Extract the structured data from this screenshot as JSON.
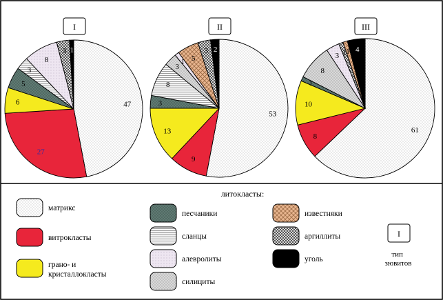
{
  "figure": {
    "legend_title": "литокласты:",
    "type_label": "тип\nзювитов",
    "type_box_example": "I"
  },
  "categories": [
    {
      "key": "matrix",
      "label": "матрикс",
      "color": "#ffffff",
      "pattern": "dots"
    },
    {
      "key": "vitro",
      "label": "витрокласты",
      "color": "#e8253a",
      "pattern": "solid"
    },
    {
      "key": "grano",
      "label": "грано- и\nкристаллокласты",
      "color": "#f5ea1e",
      "pattern": "solid"
    },
    {
      "key": "sand",
      "label": "песчаники",
      "color": "#5f7a73",
      "pattern": "dots"
    },
    {
      "key": "slate",
      "label": "сланцы",
      "color": "#f2f2f2",
      "pattern": "hlines"
    },
    {
      "key": "aleuro",
      "label": "алевролиты",
      "color": "#ebe3ee",
      "pattern": "dots"
    },
    {
      "key": "silic",
      "label": "силициты",
      "color": "#d6d6d6",
      "pattern": "dots"
    },
    {
      "key": "lime",
      "label": "известняки",
      "color": "#e7b48e",
      "pattern": "cross"
    },
    {
      "key": "argil",
      "label": "аргиллиты",
      "color": "#8d8d8d",
      "pattern": "check"
    },
    {
      "key": "coal",
      "label": "уголь",
      "color": "#000000",
      "pattern": "solid"
    }
  ],
  "chart_data": [
    {
      "type": "pie",
      "title": "I",
      "slices": [
        {
          "key": "matrix",
          "value": 47
        },
        {
          "key": "vitro",
          "value": 27
        },
        {
          "key": "grano",
          "value": 6
        },
        {
          "key": "sand",
          "value": 5
        },
        {
          "key": "slate",
          "value": 3
        },
        {
          "key": "aleuro",
          "value": 8
        },
        {
          "key": "argil",
          "value": 3
        },
        {
          "key": "coal",
          "value": 1
        }
      ]
    },
    {
      "type": "pie",
      "title": "II",
      "slices": [
        {
          "key": "matrix",
          "value": 53
        },
        {
          "key": "vitro",
          "value": 9
        },
        {
          "key": "grano",
          "value": 13
        },
        {
          "key": "sand",
          "value": 3
        },
        {
          "key": "slate",
          "value": 8
        },
        {
          "key": "silic",
          "value": 3
        },
        {
          "key": "aleuro",
          "value": 1
        },
        {
          "key": "lime",
          "value": 5
        },
        {
          "key": "argil",
          "value": 3
        },
        {
          "key": "coal",
          "value": 2
        }
      ]
    },
    {
      "type": "pie",
      "title": "III",
      "slices": [
        {
          "key": "matrix",
          "value": 61
        },
        {
          "key": "vitro",
          "value": 8
        },
        {
          "key": "grano",
          "value": 10
        },
        {
          "key": "sand",
          "value": 1
        },
        {
          "key": "silic",
          "value": 8
        },
        {
          "key": "aleuro",
          "value": 3
        },
        {
          "key": "argil",
          "value": 1
        },
        {
          "key": "lime",
          "value": 1
        },
        {
          "key": "coal",
          "value": 4
        }
      ]
    }
  ]
}
